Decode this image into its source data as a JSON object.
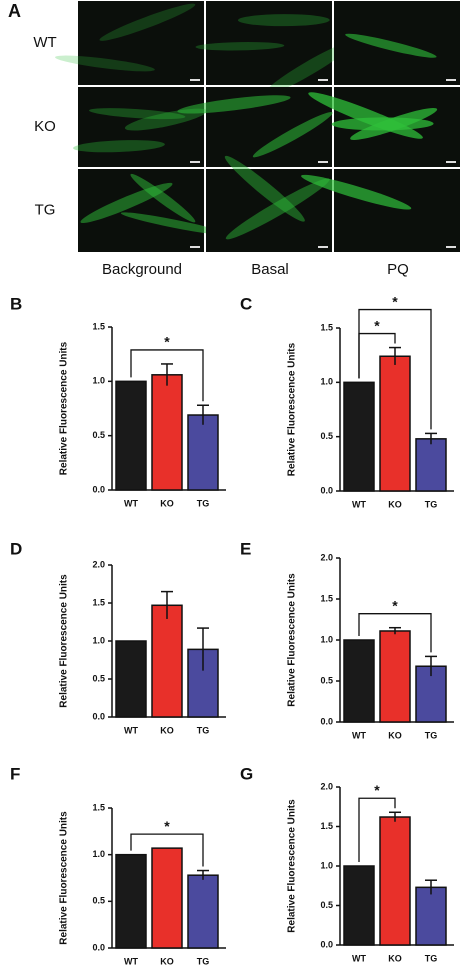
{
  "panel_a": {
    "label": "A",
    "rows": [
      "WT",
      "KO",
      "TG"
    ],
    "columns": [
      "Background",
      "Basal",
      "PQ"
    ]
  },
  "chart_data": [
    {
      "type": "bar",
      "panel": "B",
      "y_label": "Relative Fluorescence Units",
      "categories": [
        "WT",
        "KO",
        "TG"
      ],
      "values": [
        1.0,
        1.06,
        0.69
      ],
      "errors": [
        null,
        0.1,
        0.09
      ],
      "colors": [
        "#1a1a1a",
        "#e8302a",
        "#4b4a9e"
      ],
      "ylim": [
        0,
        1.5
      ],
      "yticks": [
        {
          "value": 0,
          "label": "0.0"
        },
        0.5,
        {
          "value": 1,
          "label": "1.0"
        },
        1.5
      ],
      "significance": [
        {
          "pair": [
            0,
            2
          ],
          "label": "*"
        }
      ]
    },
    {
      "type": "bar",
      "panel": "C",
      "y_label": "Relative Fluorescence Units",
      "categories": [
        "WT",
        "KO",
        "TG"
      ],
      "values": [
        1.0,
        1.24,
        0.48
      ],
      "errors": [
        null,
        0.08,
        0.05
      ],
      "colors": [
        "#1a1a1a",
        "#e8302a",
        "#4b4a9e"
      ],
      "ylim": [
        0,
        1.5
      ],
      "yticks": [
        {
          "value": 0,
          "label": "0.0"
        },
        0.5,
        {
          "value": 1,
          "label": "1.0"
        },
        1.5
      ],
      "significance": [
        {
          "pair": [
            0,
            1
          ],
          "label": "*"
        },
        {
          "pair": [
            0,
            2
          ],
          "label": "*"
        }
      ]
    },
    {
      "type": "bar",
      "panel": "D",
      "y_label": "Relative Fluorescence Units",
      "categories": [
        "WT",
        "KO",
        "TG"
      ],
      "values": [
        1.0,
        1.47,
        0.89
      ],
      "errors": [
        null,
        0.18,
        0.28
      ],
      "colors": [
        "#1a1a1a",
        "#e8302a",
        "#4b4a9e"
      ],
      "ylim": [
        0,
        2
      ],
      "yticks": [
        {
          "value": 0,
          "label": "0.0"
        },
        0.5,
        {
          "value": 1,
          "label": "1.0"
        },
        1.5,
        {
          "value": 2,
          "label": "2.0"
        }
      ],
      "significance": []
    },
    {
      "type": "bar",
      "panel": "E",
      "y_label": "Relative Fluorescence Units",
      "categories": [
        "WT",
        "KO",
        "TG"
      ],
      "values": [
        1.0,
        1.11,
        0.68
      ],
      "errors": [
        null,
        0.04,
        0.12
      ],
      "colors": [
        "#1a1a1a",
        "#e8302a",
        "#4b4a9e"
      ],
      "ylim": [
        0,
        2
      ],
      "yticks": [
        {
          "value": 0,
          "label": "0.0"
        },
        0.5,
        {
          "value": 1,
          "label": "1.0"
        },
        1.5,
        {
          "value": 2,
          "label": "2.0"
        }
      ],
      "significance": [
        {
          "pair": [
            0,
            2
          ],
          "label": "*"
        }
      ]
    },
    {
      "type": "bar",
      "panel": "F",
      "y_label": "Relative Fluorescence Units",
      "categories": [
        "WT",
        "KO",
        "TG"
      ],
      "values": [
        1.0,
        1.07,
        0.78
      ],
      "errors": [
        null,
        null,
        0.05
      ],
      "colors": [
        "#1a1a1a",
        "#e8302a",
        "#4b4a9e"
      ],
      "ylim": [
        0,
        1.5
      ],
      "yticks": [
        {
          "value": 0,
          "label": "0.0"
        },
        0.5,
        {
          "value": 1,
          "label": "1.0"
        },
        1.5
      ],
      "significance": [
        {
          "pair": [
            0,
            2
          ],
          "label": "*"
        }
      ]
    },
    {
      "type": "bar",
      "panel": "G",
      "y_label": "Relative Fluorescence Units",
      "categories": [
        "WT",
        "KO",
        "TG"
      ],
      "values": [
        1.0,
        1.62,
        0.73
      ],
      "errors": [
        null,
        0.06,
        0.09
      ],
      "colors": [
        "#1a1a1a",
        "#e8302a",
        "#4b4a9e"
      ],
      "ylim": [
        0,
        2
      ],
      "yticks": [
        {
          "value": 0,
          "label": "0.0"
        },
        0.5,
        {
          "value": 1,
          "label": "1.0"
        },
        1.5,
        {
          "value": 2,
          "label": "2.0"
        }
      ],
      "significance": [
        {
          "pair": [
            0,
            1
          ],
          "label": "*"
        }
      ]
    }
  ]
}
